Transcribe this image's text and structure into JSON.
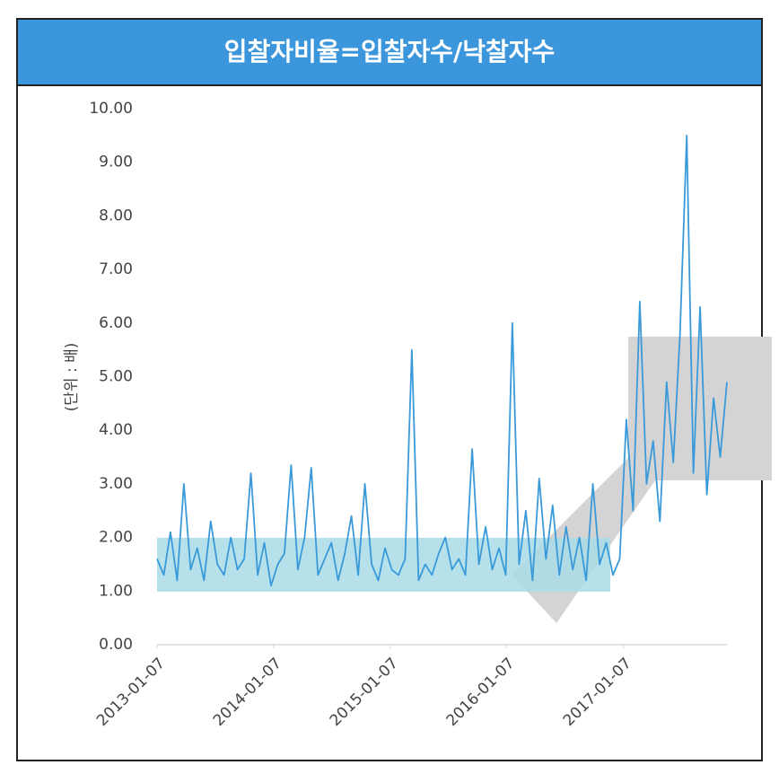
{
  "chart_data": {
    "type": "line",
    "title": "입찰자비율=입찰자수/낙찰자수",
    "y_label": "(단위 : 배)",
    "x": [
      "2013-01-07",
      "2013-01-28",
      "2013-02-18",
      "2013-03-11",
      "2013-04-01",
      "2013-04-22",
      "2013-05-13",
      "2013-06-03",
      "2013-06-24",
      "2013-07-15",
      "2013-08-05",
      "2013-08-26",
      "2013-09-16",
      "2013-10-07",
      "2013-10-28",
      "2013-11-18",
      "2013-12-09",
      "2013-12-30",
      "2014-01-20",
      "2014-02-10",
      "2014-03-03",
      "2014-03-24",
      "2014-04-14",
      "2014-05-05",
      "2014-05-26",
      "2014-06-16",
      "2014-07-07",
      "2014-07-28",
      "2014-08-18",
      "2014-09-08",
      "2014-09-29",
      "2014-10-20",
      "2014-11-10",
      "2014-12-01",
      "2014-12-22",
      "2015-01-12",
      "2015-02-02",
      "2015-02-23",
      "2015-03-16",
      "2015-04-06",
      "2015-04-27",
      "2015-05-18",
      "2015-06-08",
      "2015-06-29",
      "2015-07-20",
      "2015-08-10",
      "2015-08-31",
      "2015-09-21",
      "2015-10-12",
      "2015-11-02",
      "2015-11-23",
      "2015-12-14",
      "2016-01-04",
      "2016-01-25",
      "2016-02-15",
      "2016-03-07",
      "2016-03-28",
      "2016-04-18",
      "2016-05-09",
      "2016-05-30",
      "2016-06-20",
      "2016-07-11",
      "2016-08-01",
      "2016-08-22",
      "2016-09-12",
      "2016-10-03",
      "2016-10-24",
      "2016-11-14",
      "2016-12-05",
      "2016-12-26",
      "2017-01-16",
      "2017-02-06",
      "2017-02-27",
      "2017-03-20",
      "2017-04-10",
      "2017-05-01",
      "2017-05-22",
      "2017-06-12",
      "2017-07-03",
      "2017-07-24",
      "2017-08-14",
      "2017-09-04",
      "2017-09-25",
      "2017-10-16",
      "2017-11-06",
      "2017-11-27"
    ],
    "series": [
      {
        "name": "입찰자비율",
        "color": "#3a9ad9",
        "values": [
          1.6,
          1.3,
          2.1,
          1.2,
          3.0,
          1.4,
          1.8,
          1.2,
          2.3,
          1.5,
          1.3,
          2.0,
          1.4,
          1.6,
          3.2,
          1.3,
          1.9,
          1.1,
          1.5,
          1.7,
          3.35,
          1.4,
          2.0,
          3.3,
          1.3,
          1.6,
          1.9,
          1.2,
          1.7,
          2.4,
          1.3,
          3.0,
          1.5,
          1.2,
          1.8,
          1.4,
          1.3,
          1.6,
          5.5,
          1.2,
          1.5,
          1.3,
          1.7,
          2.0,
          1.4,
          1.6,
          1.3,
          3.65,
          1.5,
          2.2,
          1.4,
          1.8,
          1.3,
          6.0,
          1.5,
          2.5,
          1.2,
          3.1,
          1.6,
          2.6,
          1.3,
          2.2,
          1.4,
          2.0,
          1.2,
          3.0,
          1.5,
          1.9,
          1.3,
          1.6,
          4.2,
          2.5,
          6.4,
          3.0,
          3.8,
          2.3,
          4.9,
          3.4,
          5.8,
          9.5,
          3.2,
          6.3,
          2.8,
          4.6,
          3.5,
          4.9
        ]
      }
    ],
    "xlim": [
      "2013-01-07",
      "2017-11-27"
    ],
    "xticks": [
      "2013-01-07",
      "2014-01-07",
      "2015-01-07",
      "2016-01-07",
      "2017-01-07"
    ],
    "ylim": [
      0,
      10
    ],
    "yticks": [
      {
        "value": 0,
        "label": "0.00"
      },
      {
        "value": 1,
        "label": "1.00"
      },
      {
        "value": 2,
        "label": "2.00"
      },
      {
        "value": 3,
        "label": "3.00"
      },
      {
        "value": 4,
        "label": "4.00"
      },
      {
        "value": 5,
        "label": "5.00"
      },
      {
        "value": 6,
        "label": "6.00"
      },
      {
        "value": 7,
        "label": "7.00"
      },
      {
        "value": 8,
        "label": "8.00"
      },
      {
        "value": 9,
        "label": "9.00"
      },
      {
        "value": 10,
        "label": "10.00"
      }
    ]
  }
}
